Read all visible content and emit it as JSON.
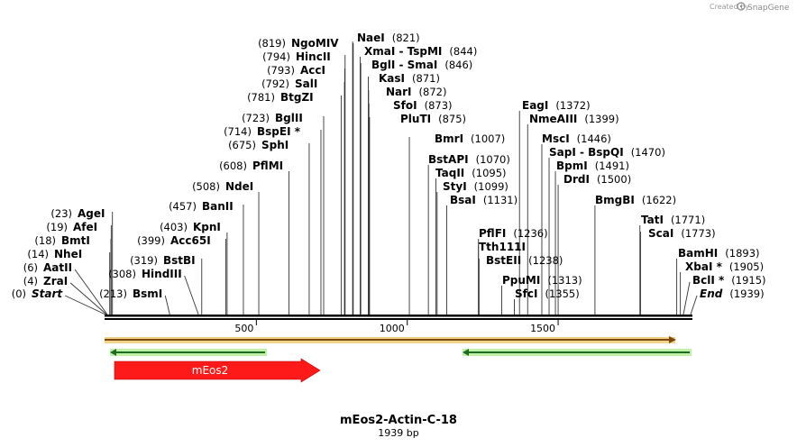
{
  "header": {
    "created_by": "Created by",
    "brand": "SnapGene"
  },
  "map": {
    "title": "mEos2-Actin-C-18",
    "subtitle": "1939 bp",
    "length": 1939
  },
  "ruler": {
    "ticks": [
      {
        "label": "500",
        "pos": 500
      },
      {
        "label": "1000",
        "pos": 1000
      },
      {
        "label": "1500",
        "pos": 1500
      }
    ]
  },
  "sites": [
    {
      "name": "Start",
      "pos_text": "(0)",
      "pos": 0,
      "special": true
    },
    {
      "name": "ZraI",
      "pos_text": "(4)",
      "pos": 4
    },
    {
      "name": "AatII",
      "pos_text": "(6)",
      "pos": 6
    },
    {
      "name": "NheI",
      "pos_text": "(14)",
      "pos": 14
    },
    {
      "name": "BmtI",
      "pos_text": "(18)",
      "pos": 18
    },
    {
      "name": "AfeI",
      "pos_text": "(19)",
      "pos": 19
    },
    {
      "name": "AgeI",
      "pos_text": "(23)",
      "pos": 23
    },
    {
      "name": "BsmI",
      "pos_text": "(213)",
      "pos": 213
    },
    {
      "name": "HindIII",
      "pos_text": "(308)",
      "pos": 308
    },
    {
      "name": "BstBI",
      "pos_text": "(319)",
      "pos": 319
    },
    {
      "name": "Acc65I",
      "pos_text": "(399)",
      "pos": 399
    },
    {
      "name": "KpnI",
      "pos_text": "(403)",
      "pos": 403
    },
    {
      "name": "BanII",
      "pos_text": "(457)",
      "pos": 457
    },
    {
      "name": "NdeI",
      "pos_text": "(508)",
      "pos": 508
    },
    {
      "name": "PflMI",
      "pos_text": "(608)",
      "pos": 608
    },
    {
      "name": "SphI",
      "pos_text": "(675)",
      "pos": 675
    },
    {
      "name": "BspEI *",
      "pos_text": "(714)",
      "pos": 714
    },
    {
      "name": "BglII",
      "pos_text": "(723)",
      "pos": 723
    },
    {
      "name": "BtgZI",
      "pos_text": "(781)",
      "pos": 781
    },
    {
      "name": "SalI",
      "pos_text": "(792)",
      "pos": 792
    },
    {
      "name": "AccI",
      "pos_text": "(793)",
      "pos": 793
    },
    {
      "name": "HincII",
      "pos_text": "(794)",
      "pos": 794
    },
    {
      "name": "NgoMIV",
      "pos_text": "(819)",
      "pos": 819
    },
    {
      "name": "NaeI",
      "pos_text": "(821)",
      "pos": 821
    },
    {
      "name": "XmaI - TspMI",
      "pos_text": "(844)",
      "pos": 844
    },
    {
      "name": "BglI - SmaI",
      "pos_text": "(846)",
      "pos": 846
    },
    {
      "name": "KasI",
      "pos_text": "(871)",
      "pos": 871
    },
    {
      "name": "NarI",
      "pos_text": "(872)",
      "pos": 872
    },
    {
      "name": "SfoI",
      "pos_text": "(873)",
      "pos": 873
    },
    {
      "name": "PluTI",
      "pos_text": "(875)",
      "pos": 875
    },
    {
      "name": "BmrI",
      "pos_text": "(1007)",
      "pos": 1007
    },
    {
      "name": "BstAPI",
      "pos_text": "(1070)",
      "pos": 1070
    },
    {
      "name": "TaqII",
      "pos_text": "(1095)",
      "pos": 1095
    },
    {
      "name": "StyI",
      "pos_text": "(1099)",
      "pos": 1099
    },
    {
      "name": "BsaI",
      "pos_text": "(1131)",
      "pos": 1131
    },
    {
      "name": "PflFI",
      "pos_text": "(1236)",
      "pos": 1236
    },
    {
      "name": "Tth111I",
      "pos_text": "",
      "pos": 1236
    },
    {
      "name": "BstEII",
      "pos_text": "(1238)",
      "pos": 1238
    },
    {
      "name": "PpuMI",
      "pos_text": "(1313)",
      "pos": 1313
    },
    {
      "name": "SfcI",
      "pos_text": "(1355)",
      "pos": 1355
    },
    {
      "name": "EagI",
      "pos_text": "(1372)",
      "pos": 1372
    },
    {
      "name": "NmeAIII",
      "pos_text": "(1399)",
      "pos": 1399
    },
    {
      "name": "MscI",
      "pos_text": "(1446)",
      "pos": 1446
    },
    {
      "name": "SapI - BspQI",
      "pos_text": "(1470)",
      "pos": 1470
    },
    {
      "name": "BpmI",
      "pos_text": "(1491)",
      "pos": 1491
    },
    {
      "name": "DrdI",
      "pos_text": "(1500)",
      "pos": 1500
    },
    {
      "name": "BmgBI",
      "pos_text": "(1622)",
      "pos": 1622
    },
    {
      "name": "TatI",
      "pos_text": "(1771)",
      "pos": 1771
    },
    {
      "name": "ScaI",
      "pos_text": "(1773)",
      "pos": 1773
    },
    {
      "name": "BamHI",
      "pos_text": "(1893)",
      "pos": 1893
    },
    {
      "name": "XbaI *",
      "pos_text": "(1905)",
      "pos": 1905
    },
    {
      "name": "BclI *",
      "pos_text": "(1915)",
      "pos": 1915
    },
    {
      "name": "End",
      "pos_text": "(1939)",
      "pos": 1939,
      "special": true
    }
  ],
  "features": [
    {
      "name": "",
      "type": "orange-bar",
      "start": 0,
      "end": 1939,
      "direction": "forward",
      "color": "#e09a2e"
    },
    {
      "name": "",
      "type": "green-arrow",
      "start": 20,
      "end": 540,
      "direction": "reverse",
      "color": "#2e9a2e"
    },
    {
      "name": "",
      "type": "green-arrow",
      "start": 1180,
      "end": 1939,
      "direction": "reverse",
      "color": "#2e9a2e"
    },
    {
      "name": "mEos2",
      "type": "cds",
      "start": 30,
      "end": 710,
      "direction": "forward",
      "color": "#ff1a1a"
    }
  ]
}
